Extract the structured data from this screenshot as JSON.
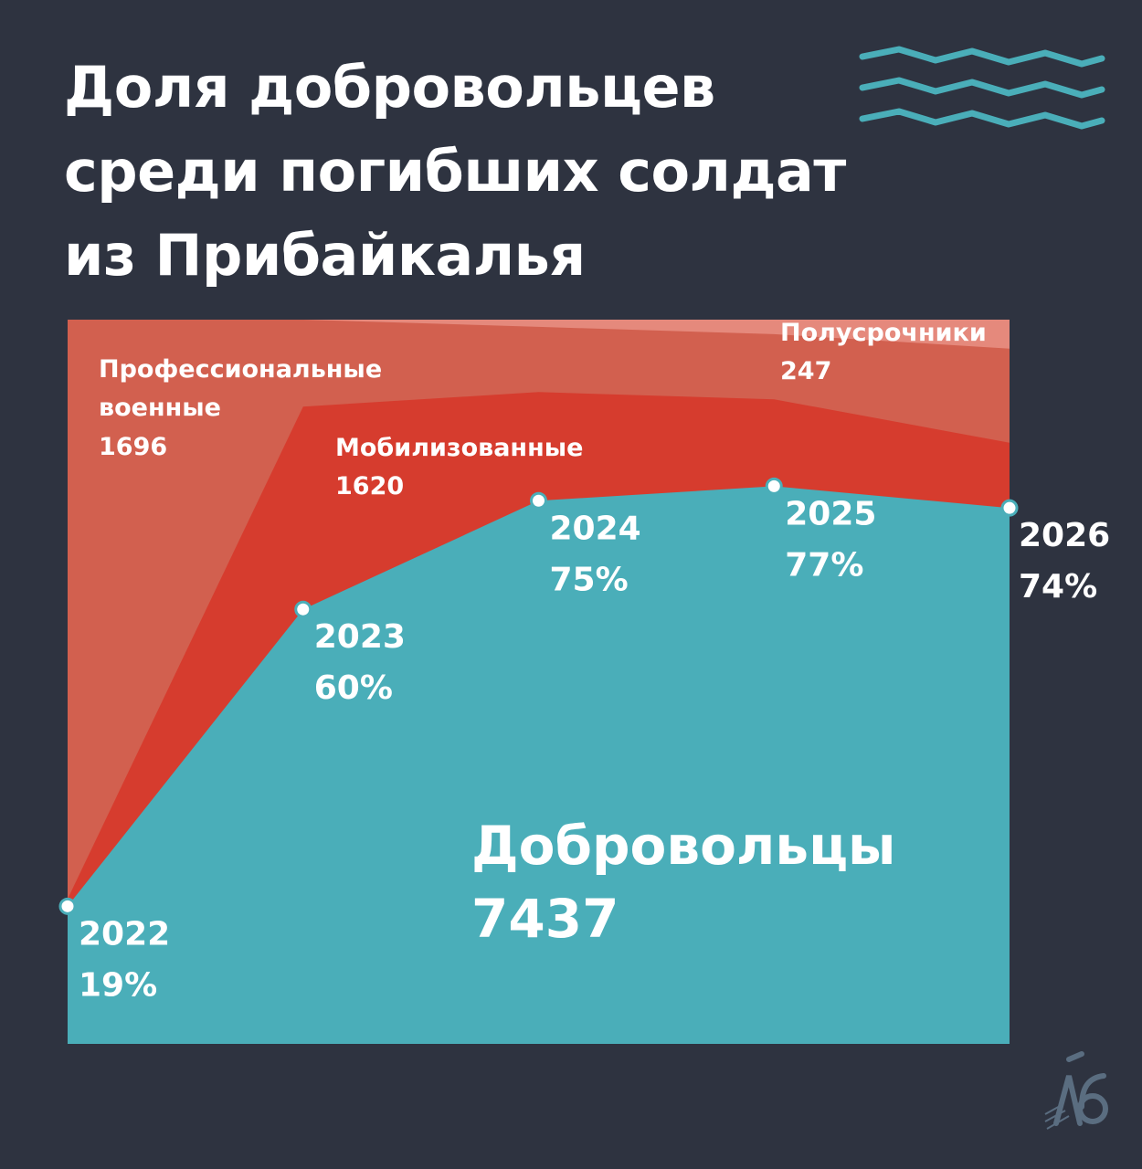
{
  "title_lines": [
    "Доля добровольцев",
    "среди погибших солдат",
    "из Прибайкалья"
  ],
  "chart_data": {
    "type": "area",
    "stacked": true,
    "normalized": true,
    "x": [
      "2022",
      "2023",
      "2024",
      "2025",
      "2026"
    ],
    "series": [
      {
        "name": "Добровольцы",
        "total": "7437",
        "color": "#4aaeb9",
        "values": [
          19,
          60,
          75,
          77,
          74
        ]
      },
      {
        "name": "Мобилизованные",
        "total": "1620",
        "color": "#d63c2e",
        "values": [
          1,
          28,
          15,
          12,
          9
        ]
      },
      {
        "name": "Профессиональные военные",
        "total": "1696",
        "color": "#d2604f",
        "values": [
          80,
          12,
          9,
          9,
          13
        ]
      },
      {
        "name": "Полусрочники",
        "total": "247",
        "color": "#e5897c",
        "values": [
          0,
          0,
          1,
          2,
          4
        ]
      }
    ],
    "point_labels": [
      {
        "year": "2022",
        "pct": "19%"
      },
      {
        "year": "2023",
        "pct": "60%"
      },
      {
        "year": "2024",
        "pct": "75%"
      },
      {
        "year": "2025",
        "pct": "77%"
      },
      {
        "year": "2026",
        "pct": "74%"
      }
    ],
    "series_labels": {
      "prof_line1": "Профессиональные",
      "prof_line2": "военные",
      "prof_total": "1696",
      "mob_name": "Мобилизованные",
      "mob_total": "1620",
      "semi_name": "Полусрочники",
      "semi_total": "247",
      "vol_name": "Добровольцы",
      "vol_total": "7437"
    },
    "ylim": [
      0,
      100
    ]
  },
  "colors": {
    "background": "#2e3340",
    "accent": "#4aaeb9",
    "point_fill": "#ffffff"
  },
  "icons": {
    "decoration": "zigzag-wave-icon",
    "logo": "publisher-logo-icon"
  }
}
